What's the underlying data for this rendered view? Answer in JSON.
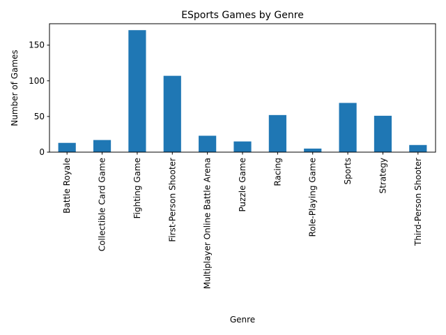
{
  "chart_data": {
    "type": "bar",
    "title": "ESports Games by Genre",
    "xlabel": "Genre",
    "ylabel": "Number of Games",
    "categories": [
      "Battle Royale",
      "Collectible Card Game",
      "Fighting Game",
      "First-Person Shooter",
      "Multiplayer Online Battle Arena",
      "Puzzle Game",
      "Racing",
      "Role-Playing Game",
      "Sports",
      "Strategy",
      "Third-Person Shooter"
    ],
    "values": [
      13,
      17,
      171,
      107,
      23,
      15,
      52,
      5,
      69,
      51,
      10
    ],
    "ylim": [
      0,
      180
    ],
    "yticks": [
      0,
      50,
      100,
      150
    ],
    "grid": false,
    "legend": "none",
    "bar_color": "#1f77b4"
  }
}
